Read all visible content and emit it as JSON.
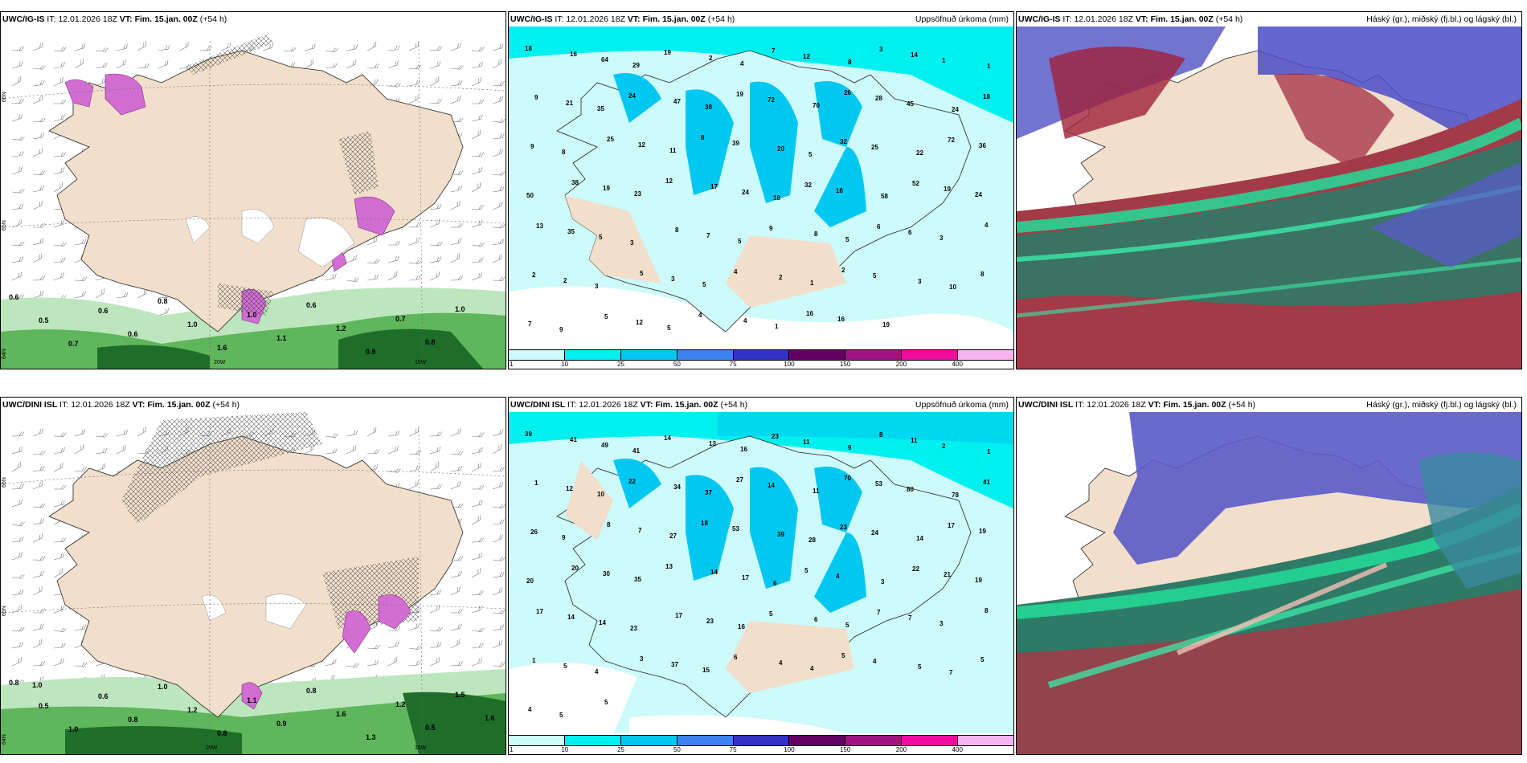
{
  "panels": [
    {
      "model": "UWC/IG-IS",
      "it_prefix": "IT:",
      "it": "12.01.2026 18Z",
      "vt_prefix": "VT:",
      "vt": "Fim. 15.jan. 00Z",
      "lead": "(+54 h)",
      "right": ""
    },
    {
      "model": "UWC/IG-IS",
      "it_prefix": "IT:",
      "it": "12.01.2026 18Z",
      "vt_prefix": "VT:",
      "vt": "Fim. 15.jan. 00Z",
      "lead": "(+54 h)",
      "right": "Uppsöfnuð úrkoma (mm)"
    },
    {
      "model": "UWC/IG-IS",
      "it_prefix": "IT:",
      "it": "12.01.2026 18Z",
      "vt_prefix": "VT:",
      "vt": "Fim. 15.jan. 00Z",
      "lead": "(+54 h)",
      "right": "Háský (gr.), miðský (fj.bl.) og lágský (bl.)"
    },
    {
      "model": "UWC/DINI ISL",
      "it_prefix": "IT:",
      "it": "12.01.2026 18Z",
      "vt_prefix": "VT:",
      "vt": "Fim. 15.jan. 00Z",
      "lead": "(+54 h)",
      "right": ""
    },
    {
      "model": "UWC/DINI ISL",
      "it_prefix": "IT:",
      "it": "12.01.2026 18Z",
      "vt_prefix": "VT:",
      "vt": "Fim. 15.jan. 00Z",
      "lead": "(+54 h)",
      "right": "Uppsöfnuð úrkoma (mm)"
    },
    {
      "model": "UWC/DINI ISL",
      "it_prefix": "IT:",
      "it": "12.01.2026 18Z",
      "vt_prefix": "VT:",
      "vt": "Fim. 15.jan. 00Z",
      "lead": "(+54 h)",
      "right": "Háský (gr.), miðský (fj.bl.) og lágský (bl.)"
    }
  ],
  "colorbar": {
    "ticks": [
      "1",
      "10",
      "25",
      "50",
      "75",
      "100",
      "150",
      "200",
      "400"
    ],
    "colors": [
      "#cdfafa",
      "#00f0f0",
      "#00c8f0",
      "#3c82f0",
      "#3232c8",
      "#640064",
      "#a01482",
      "#f00aa0",
      "#f5b4f0"
    ]
  },
  "wind_panel_labels": {
    "top": {
      "lat_a": "66N",
      "lat_b": "65N",
      "lat_c": "64N",
      "lon_a": "20W",
      "lon_b": "15W",
      "values": [
        "0.6",
        "0.5",
        "0.7",
        "0.6",
        "0.6",
        "0.8",
        "1.0",
        "1.6",
        "1.0",
        "1.1",
        "0.6",
        "1.2",
        "0.9",
        "0.7",
        "0.8",
        "1.0"
      ]
    },
    "bottom": {
      "lat_a": "66N",
      "lat_b": "65N",
      "lat_c": "64N",
      "lon_a": "20W",
      "lon_b": "15W",
      "values": [
        "0.8",
        "0.5",
        "1.0",
        "0.6",
        "0.8",
        "1.0",
        "1.2",
        "0.8",
        "1.1",
        "0.9",
        "0.8",
        "1.6",
        "1.3",
        "1.2",
        "0.5",
        "1.5",
        "1.6",
        "1.0"
      ]
    }
  },
  "precip_top_values": [
    "18",
    "16",
    "64",
    "29",
    "19",
    "2",
    "4",
    "7",
    "12",
    "8",
    "3",
    "14",
    "1",
    "1",
    "9",
    "21",
    "35",
    "24",
    "47",
    "38",
    "19",
    "72",
    "70",
    "26",
    "28",
    "45",
    "24",
    "18",
    "9",
    "8",
    "25",
    "12",
    "11",
    "8",
    "39",
    "20",
    "5",
    "32",
    "25",
    "22",
    "72",
    "36",
    "50",
    "38",
    "19",
    "23",
    "12",
    "17",
    "24",
    "18",
    "32",
    "16",
    "58",
    "52",
    "19",
    "24",
    "13",
    "35",
    "5",
    "3",
    "8",
    "7",
    "5",
    "9",
    "8",
    "5",
    "6",
    "6",
    "3",
    "4",
    "2",
    "2",
    "3",
    "5",
    "3",
    "5",
    "4",
    "2",
    "1",
    "2",
    "5",
    "3",
    "10",
    "8",
    "7",
    "9",
    "5",
    "12",
    "5",
    "4",
    "4",
    "1",
    "16",
    "16",
    "19"
  ],
  "precip_bottom_values": [
    "39",
    "41",
    "49",
    "41",
    "14",
    "13",
    "16",
    "23",
    "11",
    "9",
    "8",
    "11",
    "2",
    "1",
    "1",
    "12",
    "10",
    "22",
    "34",
    "37",
    "27",
    "14",
    "11",
    "70",
    "53",
    "80",
    "78",
    "41",
    "26",
    "9",
    "8",
    "7",
    "27",
    "18",
    "53",
    "39",
    "28",
    "23",
    "24",
    "14",
    "17",
    "19",
    "20",
    "20",
    "30",
    "35",
    "13",
    "14",
    "17",
    "6",
    "5",
    "4",
    "3",
    "22",
    "21",
    "19",
    "17",
    "14",
    "14",
    "23",
    "17",
    "23",
    "16",
    "5",
    "6",
    "5",
    "7",
    "7",
    "3",
    "8",
    "1",
    "5",
    "4",
    "3",
    "37",
    "15",
    "6",
    "4",
    "4",
    "5",
    "4",
    "5",
    "7",
    "5",
    "4",
    "5",
    "5"
  ]
}
